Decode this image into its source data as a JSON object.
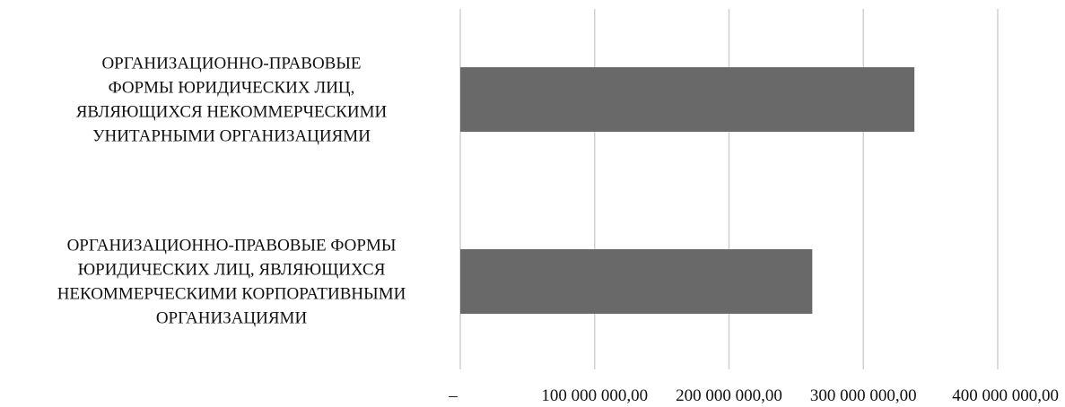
{
  "chart_data": {
    "type": "bar",
    "orientation": "horizontal",
    "categories": [
      "ОРГАНИЗАЦИОННО-ПРАВОВЫЕ ФОРМЫ ЮРИДИЧЕСКИХ ЛИЦ, ЯВЛЯЮЩИХСЯ НЕКОММЕРЧЕСКИМИ УНИТАРНЫМИ ОРГАНИЗАЦИЯМИ",
      "ОРГАНИЗАЦИОННО-ПРАВОВЫЕ ФОРМЫ ЮРИДИЧЕСКИХ ЛИЦ, ЯВЛЯЮЩИХСЯ НЕКОММЕРЧЕСКИМИ КОРПОРАТИВНЫМИ ОРГАНИЗАЦИЯМИ"
    ],
    "category_lines": [
      [
        "ОРГАНИЗАЦИОННО-ПРАВОВЫЕ",
        "ФОРМЫ ЮРИДИЧЕСКИХ ЛИЦ,",
        "ЯВЛЯЮЩИХСЯ НЕКОММЕРЧЕСКИМИ",
        "УНИТАРНЫМИ ОРГАНИЗАЦИЯМИ"
      ],
      [
        "ОРГАНИЗАЦИОННО-ПРАВОВЫЕ ФОРМЫ",
        "ЮРИДИЧЕСКИХ ЛИЦ, ЯВЛЯЮЩИХСЯ",
        "НЕКОММЕРЧЕСКИМИ КОРПОРАТИВНЫМИ",
        "ОРГАНИЗАЦИЯМИ"
      ]
    ],
    "values": [
      338000000,
      262000000
    ],
    "xlim": [
      0,
      400000000
    ],
    "xticks": [
      0,
      100000000,
      200000000,
      300000000,
      400000000
    ],
    "xtick_labels": [
      "–",
      "100 000 000,00",
      "200 000 000,00",
      "300 000 000,00",
      "400 000 000,00"
    ],
    "bar_color": "#696969",
    "grid": true,
    "legend": "none",
    "title": "",
    "xlabel": "",
    "ylabel": ""
  }
}
